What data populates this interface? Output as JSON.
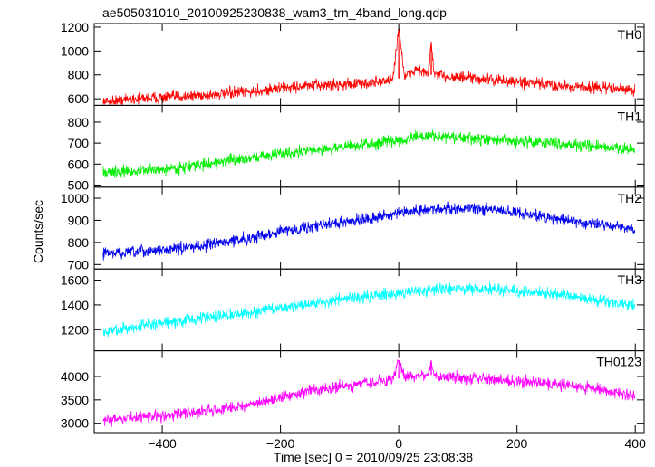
{
  "chart_data": {
    "type": "line",
    "title": "ae505031010_20100925230838_wam3_trn_4band_long.qdp",
    "xlabel": "Time [sec] 0 = 2010/09/25 23:08:38",
    "ylabel": "Counts/sec",
    "xlim": [
      -515,
      415
    ],
    "x_ticks": [
      -400,
      -200,
      0,
      200,
      400
    ],
    "grid": false,
    "panels": [
      {
        "name": "TH0",
        "color": "#ff0000",
        "ylim": [
          545,
          1230
        ],
        "y_ticks": [
          600,
          800,
          1000,
          1200
        ],
        "x": [
          -500,
          -450,
          -400,
          -350,
          -300,
          -250,
          -200,
          -150,
          -100,
          -50,
          -10,
          0,
          10,
          30,
          50,
          55,
          60,
          100,
          150,
          200,
          250,
          300,
          350,
          400
        ],
        "y": [
          570,
          600,
          610,
          625,
          640,
          660,
          690,
          710,
          720,
          730,
          760,
          1200,
          780,
          850,
          800,
          1080,
          800,
          780,
          760,
          740,
          720,
          700,
          690,
          670
        ]
      },
      {
        "name": "TH1",
        "color": "#00ee00",
        "ylim": [
          490,
          880
        ],
        "y_ticks": [
          500,
          600,
          700,
          800
        ],
        "x": [
          -500,
          -450,
          -400,
          -350,
          -300,
          -250,
          -200,
          -150,
          -100,
          -50,
          0,
          50,
          100,
          150,
          200,
          250,
          300,
          350,
          400
        ],
        "y": [
          560,
          565,
          575,
          590,
          610,
          630,
          650,
          665,
          680,
          695,
          715,
          735,
          725,
          715,
          710,
          705,
          690,
          680,
          670
        ]
      },
      {
        "name": "TH2",
        "color": "#0000ee",
        "ylim": [
          680,
          1050
        ],
        "y_ticks": [
          700,
          800,
          900,
          1000
        ],
        "x": [
          -500,
          -450,
          -400,
          -350,
          -300,
          -250,
          -200,
          -150,
          -100,
          -50,
          0,
          50,
          100,
          150,
          200,
          250,
          300,
          350,
          400
        ],
        "y": [
          750,
          755,
          765,
          780,
          800,
          820,
          850,
          870,
          890,
          910,
          930,
          950,
          955,
          950,
          935,
          915,
          895,
          880,
          855
        ]
      },
      {
        "name": "TH3",
        "color": "#00ffff",
        "ylim": [
          1030,
          1690
        ],
        "y_ticks": [
          1200,
          1400,
          1600
        ],
        "x": [
          -500,
          -450,
          -400,
          -350,
          -300,
          -250,
          -200,
          -150,
          -100,
          -50,
          0,
          50,
          100,
          150,
          200,
          250,
          300,
          350,
          400
        ],
        "y": [
          1180,
          1220,
          1250,
          1280,
          1310,
          1340,
          1380,
          1410,
          1440,
          1470,
          1500,
          1520,
          1530,
          1530,
          1510,
          1490,
          1460,
          1430,
          1400
        ]
      },
      {
        "name": "TH0123",
        "color": "#ff00ff",
        "ylim": [
          2800,
          4550
        ],
        "y_ticks": [
          3000,
          3500,
          4000
        ],
        "x": [
          -500,
          -450,
          -400,
          -350,
          -300,
          -250,
          -200,
          -150,
          -100,
          -50,
          -10,
          0,
          10,
          50,
          55,
          60,
          100,
          150,
          200,
          250,
          300,
          350,
          400
        ],
        "y": [
          3050,
          3120,
          3170,
          3230,
          3300,
          3400,
          3550,
          3700,
          3780,
          3850,
          3930,
          4350,
          3980,
          4050,
          4350,
          4020,
          3980,
          3950,
          3900,
          3850,
          3800,
          3700,
          3580
        ]
      }
    ]
  }
}
